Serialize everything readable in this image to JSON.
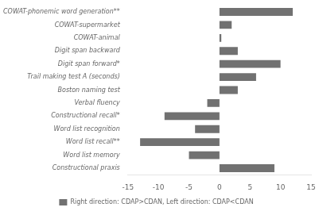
{
  "chart_data": {
    "type": "bar",
    "orientation": "horizontal",
    "categories": [
      "Constructional praxis",
      "Word list memory",
      "Word list recall**",
      "Word list recognition",
      "Constructional recall*",
      "Verbal fluency",
      "Boston naming test",
      "Trail making test A (seconds)",
      "Digit span forward*",
      "Digit span backward",
      "COWAT-animal",
      "COWAT-supermarket",
      "COWAT-phonemic word generation**"
    ],
    "series": [
      {
        "name": "Right direction: CDAP>CDAN, Left direction: CDAP<CDAN",
        "color": "#717171",
        "values": [
          9,
          -5,
          -13,
          -4,
          -9,
          -2,
          3,
          6,
          10,
          3,
          0.3,
          2,
          12
        ]
      }
    ],
    "xlim": [
      -15,
      15
    ],
    "xticks": [
      -15,
      -10,
      -5,
      0,
      5,
      10,
      15
    ],
    "grid": false,
    "legend": "bottom"
  }
}
